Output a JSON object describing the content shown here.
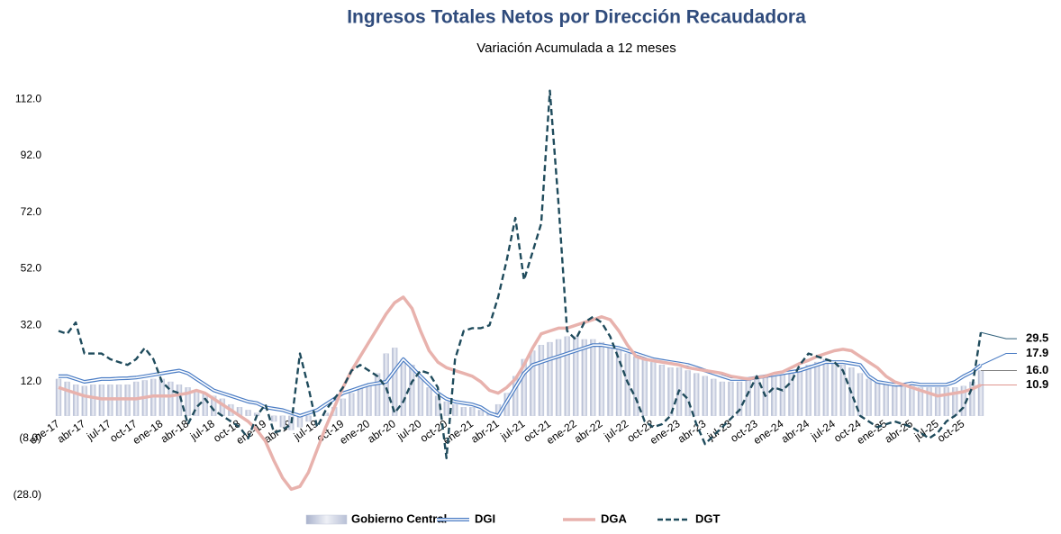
{
  "chart_data": {
    "type": "combo",
    "title": "Ingresos Totales Netos por Dirección Recaudadora",
    "subtitle": "Variación Acumulada a 12 meses",
    "categories": [
      "ene-17",
      null,
      null,
      "abr-17",
      null,
      null,
      "jul-17",
      null,
      null,
      "oct-17",
      null,
      null,
      "ene-18",
      null,
      null,
      "abr-18",
      null,
      null,
      "jul-18",
      null,
      null,
      "oct-18",
      null,
      null,
      "ene-19",
      null,
      null,
      "abr-19",
      null,
      null,
      "jul-19",
      null,
      null,
      "oct-19",
      null,
      null,
      "ene-20",
      null,
      null,
      "abr-20",
      null,
      null,
      "jul-20",
      null,
      null,
      "oct-20",
      null,
      null,
      "ene-21",
      null,
      null,
      "abr-21",
      null,
      null,
      "jul-21",
      null,
      null,
      "oct-21",
      null,
      null,
      "ene-22",
      null,
      null,
      "abr-22",
      null,
      null,
      "jul-22",
      null,
      null,
      "oct-22",
      null,
      null,
      "ene-23",
      null,
      null,
      "abr-23",
      null,
      null,
      "jul-23",
      null,
      null,
      "oct-23",
      null,
      null,
      "ene-24",
      null,
      null,
      "abr-24",
      null,
      null,
      "jul-24",
      null,
      null,
      "oct-24",
      null,
      null,
      "ene-25",
      null,
      null,
      "abr-25",
      null,
      null,
      "jul-25",
      null,
      null,
      "oct-25",
      null,
      null
    ],
    "ylim": [
      -28,
      120
    ],
    "yticks": [
      {
        "value": -28,
        "label": "(28.0)"
      },
      {
        "value": -8,
        "label": "(8.0)"
      },
      {
        "value": 12,
        "label": "12.0"
      },
      {
        "value": 32,
        "label": "32.0"
      },
      {
        "value": 52,
        "label": "52.0"
      },
      {
        "value": 72,
        "label": "72.0"
      },
      {
        "value": 92,
        "label": "92.0"
      },
      {
        "value": 112,
        "label": "112.0"
      }
    ],
    "grid": false,
    "series": [
      {
        "name": "Gobierno Central",
        "kind": "bar",
        "color": "#c5cbdd",
        "end_label": "16.0",
        "end_color": "#7f7f7f",
        "values": [
          13,
          12,
          11,
          10.5,
          11,
          11,
          11,
          11,
          11,
          12,
          12.5,
          13,
          13,
          12,
          11,
          10,
          9,
          8,
          7,
          6,
          4,
          3,
          2,
          1,
          0,
          -2,
          -4,
          -5,
          -4,
          -2,
          0,
          1,
          3,
          6,
          8,
          10,
          11,
          15,
          22,
          24,
          20,
          18,
          14,
          10,
          7,
          5,
          4,
          3,
          3,
          2,
          1,
          4,
          8,
          14,
          20,
          23,
          25,
          26,
          27,
          28,
          28,
          27,
          27,
          26,
          25,
          24,
          22,
          21,
          20,
          19,
          18,
          17,
          17,
          16,
          15,
          14,
          13,
          12,
          12,
          12,
          13,
          13.5,
          14,
          14.5,
          15,
          16,
          17,
          18,
          19,
          20,
          19,
          18,
          17,
          15,
          13,
          12,
          11,
          11,
          11,
          10.5,
          10,
          10,
          10,
          10,
          10,
          10.5,
          12,
          16
        ]
      },
      {
        "name": "DGI",
        "kind": "double-line",
        "color": "#4a7cc4",
        "end_label": "17.9",
        "end_color": "#4a7cc4",
        "values": [
          14,
          14,
          13,
          12,
          12.5,
          13,
          13,
          13.2,
          13.3,
          13.5,
          14,
          14.5,
          15,
          15.5,
          16,
          15,
          13,
          11,
          9,
          8,
          7,
          6,
          5,
          4.5,
          3,
          2.5,
          2,
          1,
          0,
          1,
          2,
          4,
          6,
          8,
          9,
          10,
          11,
          11.5,
          12,
          16,
          20,
          17,
          14,
          11,
          8,
          6,
          5,
          4.5,
          4,
          3,
          1,
          0,
          5,
          10,
          15,
          18,
          19,
          20,
          21,
          22,
          23,
          24,
          25,
          25,
          24.5,
          24,
          23,
          22,
          21,
          20,
          19.5,
          19,
          18.5,
          18,
          17,
          16,
          15,
          14,
          13,
          13,
          13,
          13.5,
          14,
          14.5,
          15,
          15.5,
          16,
          17,
          18,
          19,
          19,
          19,
          18.5,
          18,
          14,
          12,
          11.5,
          11,
          11,
          11.5,
          11,
          11,
          11,
          11,
          12,
          14,
          15.5,
          17.9
        ]
      },
      {
        "name": "DGA",
        "kind": "line",
        "color": "#e8b2ad",
        "end_label": "10.9",
        "end_color": "#e0958f",
        "values": [
          10,
          9,
          8,
          7,
          6.5,
          6,
          6,
          6,
          6,
          6,
          6.5,
          7,
          7,
          7,
          7.5,
          8,
          9,
          8,
          6,
          4,
          2,
          0,
          -2,
          -5,
          -9,
          -16,
          -22,
          -26,
          -25,
          -20,
          -12,
          -4,
          3,
          10,
          16,
          21,
          26,
          31,
          36,
          40,
          42,
          38,
          30,
          23,
          19,
          17,
          16,
          15,
          14,
          12,
          9,
          8,
          10,
          13,
          18,
          24,
          29,
          30,
          31,
          31,
          32,
          33,
          34,
          35,
          34,
          30,
          25,
          21,
          20,
          19.5,
          19,
          18.5,
          18,
          17,
          16.5,
          16,
          15.5,
          15,
          14,
          13.5,
          13,
          13.5,
          14,
          15,
          15.5,
          17,
          18.5,
          19.6,
          21,
          22,
          23,
          23.5,
          23,
          21,
          19,
          17,
          14,
          12,
          11,
          10,
          9,
          8,
          7,
          7.5,
          8,
          8.5,
          9.5,
          10.9
        ]
      },
      {
        "name": "DGT",
        "kind": "dashed-line",
        "color": "#1f4b5c",
        "end_label": "29.5",
        "end_color": "#2e5f7a",
        "values": [
          30,
          29,
          33,
          22,
          22,
          22,
          20,
          19,
          18,
          20,
          24,
          20,
          12,
          9,
          8,
          -3,
          3,
          6,
          2,
          0,
          -2,
          -4,
          -8,
          0,
          4,
          -6,
          -5,
          -3,
          22,
          10,
          -4,
          2,
          6,
          10,
          16,
          18,
          16,
          14,
          10,
          1,
          5,
          12,
          16,
          15,
          10,
          -15,
          20,
          30,
          31,
          31,
          32,
          42,
          55,
          70,
          48,
          58,
          68,
          115,
          75,
          30,
          27,
          33,
          35,
          33,
          28,
          20,
          12,
          6,
          -2,
          -4,
          -3,
          0,
          9,
          6,
          -3,
          -10,
          -7,
          -4,
          -1,
          2,
          8,
          14,
          7,
          10,
          9,
          12,
          18,
          22,
          21,
          20,
          19,
          16,
          8,
          0,
          -2,
          -4,
          -3,
          -2,
          -3,
          -4,
          -6,
          -8,
          -6,
          -2,
          0,
          3,
          10,
          29.5
        ]
      }
    ]
  }
}
